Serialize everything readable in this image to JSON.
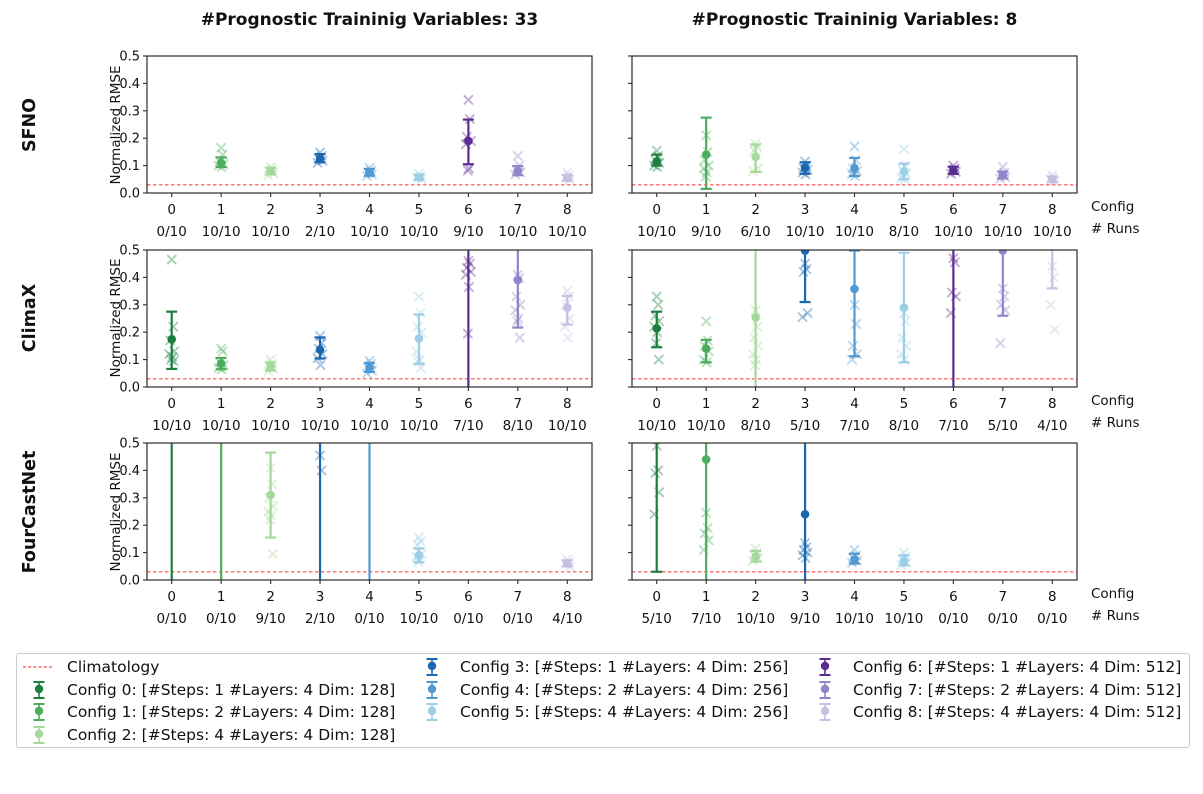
{
  "figure": {
    "col_titles": [
      "#Prognostic Traininig Variables: 33",
      "#Prognostic Traininig Variables: 8"
    ],
    "row_labels": [
      "SFNO",
      "ClimaX",
      "FourCastNet"
    ],
    "ylabel": "Normalized RMSE",
    "config_axis_label": "Config",
    "runs_axis_label": "# Runs",
    "ytick_labels": [
      "0.0",
      "0.1",
      "0.2",
      "0.3",
      "0.4",
      "0.5"
    ],
    "xticks": [
      "0",
      "1",
      "2",
      "3",
      "4",
      "5",
      "6",
      "7",
      "8"
    ]
  },
  "chart_data": {
    "type": "scatter",
    "ylabel": "Normalized RMSE",
    "xlabel": "Config",
    "ylim": [
      0,
      0.5
    ],
    "yticks": [
      0,
      0.1,
      0.2,
      0.3,
      0.4,
      0.5
    ],
    "x_categories": [
      0,
      1,
      2,
      3,
      4,
      5,
      6,
      7,
      8
    ],
    "climatology": 0.03,
    "climatology_color": "#fb4b4b",
    "colors": [
      "#1d7e3f",
      "#4cae5c",
      "#a5d99b",
      "#1a67b0",
      "#5099d3",
      "#9ccee6",
      "#5c2d91",
      "#8e86c9",
      "#c4c1e0"
    ],
    "panels": [
      {
        "model": "SFNO",
        "col_title": "#Prognostic Traininig Variables: 33",
        "runs": [
          "0/10",
          "10/10",
          "10/10",
          "2/10",
          "10/10",
          "10/10",
          "9/10",
          "10/10",
          "10/10"
        ],
        "configs": [
          null,
          {
            "mean": 0.11,
            "lo": 0.095,
            "hi": 0.13,
            "scatter": [
              0.165,
              0.14,
              0.115,
              0.105,
              0.1,
              0.095
            ]
          },
          {
            "mean": 0.08,
            "lo": 0.068,
            "hi": 0.092,
            "scatter": [
              0.095,
              0.088,
              0.079,
              0.072,
              0.065
            ]
          },
          {
            "mean": 0.125,
            "lo": 0.112,
            "hi": 0.142,
            "scatter": [
              0.148,
              0.135,
              0.125,
              0.118,
              0.11
            ]
          },
          {
            "mean": 0.075,
            "lo": 0.063,
            "hi": 0.088,
            "scatter": [
              0.092,
              0.082,
              0.074,
              0.068,
              0.062
            ]
          },
          {
            "mean": 0.057,
            "lo": 0.048,
            "hi": 0.067,
            "scatter": [
              0.07,
              0.062,
              0.055,
              0.05
            ]
          },
          {
            "mean": 0.19,
            "lo": 0.105,
            "hi": 0.268,
            "scatter": [
              0.34,
              0.27,
              0.205,
              0.19,
              0.178,
              0.09,
              0.082
            ]
          },
          {
            "mean": 0.08,
            "lo": 0.065,
            "hi": 0.098,
            "scatter": [
              0.135,
              0.1,
              0.085,
              0.075,
              0.068
            ]
          },
          {
            "mean": 0.055,
            "lo": 0.045,
            "hi": 0.066,
            "scatter": [
              0.075,
              0.065,
              0.055,
              0.048
            ]
          }
        ]
      },
      {
        "model": "SFNO",
        "col_title": "#Prognostic Traininig Variables: 8",
        "runs": [
          "10/10",
          "9/10",
          "6/10",
          "10/10",
          "10/10",
          "8/10",
          "10/10",
          "10/10",
          "10/10"
        ],
        "configs": [
          {
            "mean": 0.115,
            "lo": 0.1,
            "hi": 0.14,
            "scatter": [
              0.155,
              0.135,
              0.12,
              0.11,
              0.1,
              0.095
            ]
          },
          {
            "mean": 0.14,
            "lo": 0.015,
            "hi": 0.275,
            "scatter": [
              0.21,
              0.15,
              0.12,
              0.1,
              0.09,
              0.075,
              0.06
            ]
          },
          {
            "mean": 0.132,
            "lo": 0.077,
            "hi": 0.177,
            "scatter": [
              0.18,
              0.168,
              0.155,
              0.09,
              0.08
            ]
          },
          {
            "mean": 0.092,
            "lo": 0.07,
            "hi": 0.112,
            "scatter": [
              0.115,
              0.1,
              0.09,
              0.085,
              0.075,
              0.068
            ]
          },
          {
            "mean": 0.09,
            "lo": 0.062,
            "hi": 0.128,
            "scatter": [
              0.17,
              0.12,
              0.09,
              0.08,
              0.07,
              0.062
            ]
          },
          {
            "mean": 0.078,
            "lo": 0.05,
            "hi": 0.107,
            "scatter": [
              0.16,
              0.1,
              0.085,
              0.07,
              0.055,
              0.05
            ]
          },
          {
            "mean": 0.083,
            "lo": 0.07,
            "hi": 0.096,
            "scatter": [
              0.1,
              0.09,
              0.083,
              0.077,
              0.07
            ]
          },
          {
            "mean": 0.065,
            "lo": 0.053,
            "hi": 0.078,
            "scatter": [
              0.095,
              0.075,
              0.065,
              0.058,
              0.052
            ]
          },
          {
            "mean": 0.05,
            "lo": 0.04,
            "hi": 0.06,
            "scatter": [
              0.065,
              0.055,
              0.05,
              0.043
            ]
          }
        ]
      },
      {
        "model": "ClimaX",
        "col_title": "#Prognostic Traininig Variables: 33",
        "runs": [
          "10/10",
          "10/10",
          "10/10",
          "10/10",
          "10/10",
          "10/10",
          "7/10",
          "8/10",
          "10/10"
        ],
        "configs": [
          {
            "mean": 0.174,
            "lo": 0.066,
            "hi": 0.275,
            "scatter": [
              0.465,
              0.22,
              0.17,
              0.13,
              0.12,
              0.11,
              0.1,
              0.094
            ]
          },
          {
            "mean": 0.086,
            "lo": 0.065,
            "hi": 0.106,
            "scatter": [
              0.14,
              0.13,
              0.09,
              0.08,
              0.07,
              0.064
            ]
          },
          {
            "mean": 0.075,
            "lo": 0.06,
            "hi": 0.09,
            "scatter": [
              0.1,
              0.085,
              0.075,
              0.068,
              0.058
            ]
          },
          {
            "mean": 0.136,
            "lo": 0.104,
            "hi": 0.181,
            "scatter": [
              0.186,
              0.16,
              0.14,
              0.12,
              0.105,
              0.08
            ]
          },
          {
            "mean": 0.07,
            "lo": 0.055,
            "hi": 0.088,
            "scatter": [
              0.096,
              0.085,
              0.07,
              0.06,
              0.05
            ]
          },
          {
            "mean": 0.177,
            "lo": 0.085,
            "hi": 0.265,
            "scatter": [
              0.33,
              0.27,
              0.22,
              0.198,
              0.13,
              0.1,
              0.09,
              0.07
            ]
          },
          {
            "mean": null,
            "lo": -0.05,
            "hi": 0.55,
            "scatter": [
              0.46,
              0.45,
              0.435,
              0.42,
              0.41,
              0.365,
              0.195
            ]
          },
          {
            "mean": 0.39,
            "lo": 0.217,
            "hi": 0.55,
            "scatter": [
              0.41,
              0.398,
              0.33,
              0.3,
              0.28,
              0.25,
              0.24,
              0.18
            ]
          },
          {
            "mean": 0.29,
            "lo": 0.228,
            "hi": 0.332,
            "scatter": [
              0.35,
              0.33,
              0.3,
              0.25,
              0.22,
              0.18
            ]
          }
        ]
      },
      {
        "model": "ClimaX",
        "col_title": "#Prognostic Traininig Variables: 8",
        "runs": [
          "10/10",
          "10/10",
          "8/10",
          "5/10",
          "7/10",
          "8/10",
          "7/10",
          "5/10",
          "4/10"
        ],
        "configs": [
          {
            "mean": 0.214,
            "lo": 0.145,
            "hi": 0.275,
            "scatter": [
              0.33,
              0.3,
              0.26,
              0.24,
              0.22,
              0.2,
              0.16,
              0.1
            ]
          },
          {
            "mean": 0.14,
            "lo": 0.09,
            "hi": 0.172,
            "scatter": [
              0.24,
              0.17,
              0.15,
              0.13,
              0.1,
              0.09
            ]
          },
          {
            "mean": 0.254,
            "lo": -0.05,
            "hi": 0.55,
            "scatter": [
              0.28,
              0.22,
              0.18,
              0.15,
              0.12,
              0.1,
              0.08
            ]
          },
          {
            "mean": 0.498,
            "lo": 0.31,
            "hi": 0.55,
            "scatter": [
              0.45,
              0.43,
              0.42,
              0.27,
              0.255
            ]
          },
          {
            "mean": 0.358,
            "lo": 0.112,
            "hi": 0.498,
            "scatter": [
              0.3,
              0.23,
              0.15,
              0.12,
              0.1
            ]
          },
          {
            "mean": 0.29,
            "lo": 0.09,
            "hi": 0.49,
            "scatter": [
              0.27,
              0.24,
              0.18,
              0.15,
              0.12,
              0.1
            ]
          },
          {
            "mean": null,
            "lo": -0.05,
            "hi": 0.55,
            "scatter": [
              0.47,
              0.455,
              0.345,
              0.33,
              0.27
            ]
          },
          {
            "mean": 0.498,
            "lo": 0.26,
            "hi": 0.55,
            "scatter": [
              0.36,
              0.33,
              0.3,
              0.28,
              0.16
            ]
          },
          {
            "mean": null,
            "lo": 0.36,
            "hi": 0.55,
            "scatter": [
              0.44,
              0.4,
              0.3,
              0.21
            ]
          }
        ]
      },
      {
        "model": "FourCastNet",
        "col_title": "#Prognostic Traininig Variables: 33",
        "runs": [
          "0/10",
          "0/10",
          "9/10",
          "2/10",
          "0/10",
          "10/10",
          "0/10",
          "0/10",
          "4/10"
        ],
        "configs": [
          {
            "mean": null,
            "lo": -0.05,
            "hi": 0.55,
            "scatter": []
          },
          {
            "mean": null,
            "lo": -0.05,
            "hi": 0.55,
            "scatter": []
          },
          {
            "mean": 0.31,
            "lo": 0.155,
            "hi": 0.465,
            "scatter": [
              0.41,
              0.35,
              0.3,
              0.27,
              0.25,
              0.235,
              0.22,
              0.095
            ]
          },
          {
            "mean": null,
            "lo": -0.05,
            "hi": 0.55,
            "scatter": [
              0.455,
              0.4
            ]
          },
          {
            "mean": null,
            "lo": -0.05,
            "hi": 0.55,
            "scatter": []
          },
          {
            "mean": 0.09,
            "lo": 0.065,
            "hi": 0.115,
            "scatter": [
              0.155,
              0.14,
              0.13,
              0.095,
              0.085,
              0.075,
              0.065
            ]
          },
          null,
          null,
          {
            "mean": 0.06,
            "lo": 0.05,
            "hi": 0.072,
            "scatter": [
              0.075,
              0.065,
              0.057,
              0.05
            ]
          }
        ]
      },
      {
        "model": "FourCastNet",
        "col_title": "#Prognostic Traininig Variables: 8",
        "runs": [
          "5/10",
          "7/10",
          "10/10",
          "9/10",
          "10/10",
          "10/10",
          "0/10",
          "0/10",
          "0/10"
        ],
        "configs": [
          {
            "mean": null,
            "lo": 0.03,
            "hi": 0.55,
            "scatter": [
              0.49,
              0.4,
              0.39,
              0.32,
              0.24
            ]
          },
          {
            "mean": 0.44,
            "lo": -0.05,
            "hi": 0.55,
            "scatter": [
              0.245,
              0.19,
              0.17,
              0.145,
              0.11
            ]
          },
          {
            "mean": 0.085,
            "lo": 0.067,
            "hi": 0.106,
            "scatter": [
              0.115,
              0.1,
              0.09,
              0.08,
              0.07
            ]
          },
          {
            "mean": 0.24,
            "lo": -0.05,
            "hi": 0.55,
            "scatter": [
              0.135,
              0.12,
              0.11,
              0.1,
              0.09,
              0.08
            ]
          },
          {
            "mean": 0.075,
            "lo": 0.06,
            "hi": 0.096,
            "scatter": [
              0.11,
              0.09,
              0.08,
              0.07,
              0.063
            ]
          },
          {
            "mean": 0.07,
            "lo": 0.053,
            "hi": 0.09,
            "scatter": [
              0.1,
              0.085,
              0.075,
              0.063,
              0.055
            ]
          },
          null,
          null,
          null
        ]
      }
    ],
    "legend": {
      "climatology": {
        "label": "Climatology",
        "color": "#fb4b4b"
      },
      "entries": [
        {
          "label": "Config 0: [#Steps: 1 #Layers: 4 Dim: 128]",
          "color": "#1d7e3f"
        },
        {
          "label": "Config 1: [#Steps: 2 #Layers: 4 Dim: 128]",
          "color": "#4cae5c"
        },
        {
          "label": "Config 2: [#Steps: 4 #Layers: 4 Dim: 128]",
          "color": "#a5d99b"
        },
        {
          "label": "Config 3: [#Steps: 1 #Layers: 4 Dim: 256]",
          "color": "#1a67b0"
        },
        {
          "label": "Config 4: [#Steps: 2 #Layers: 4 Dim: 256]",
          "color": "#5099d3"
        },
        {
          "label": "Config 5: [#Steps: 4 #Layers: 4 Dim: 256]",
          "color": "#9ccee6"
        },
        {
          "label": "Config 6: [#Steps: 1 #Layers: 4 Dim: 512]",
          "color": "#5c2d91"
        },
        {
          "label": "Config 7: [#Steps: 2 #Layers: 4 Dim: 512]",
          "color": "#8e86c9"
        },
        {
          "label": "Config 8: [#Steps: 4 #Layers: 4 Dim: 512]",
          "color": "#c4c1e0"
        }
      ]
    }
  }
}
